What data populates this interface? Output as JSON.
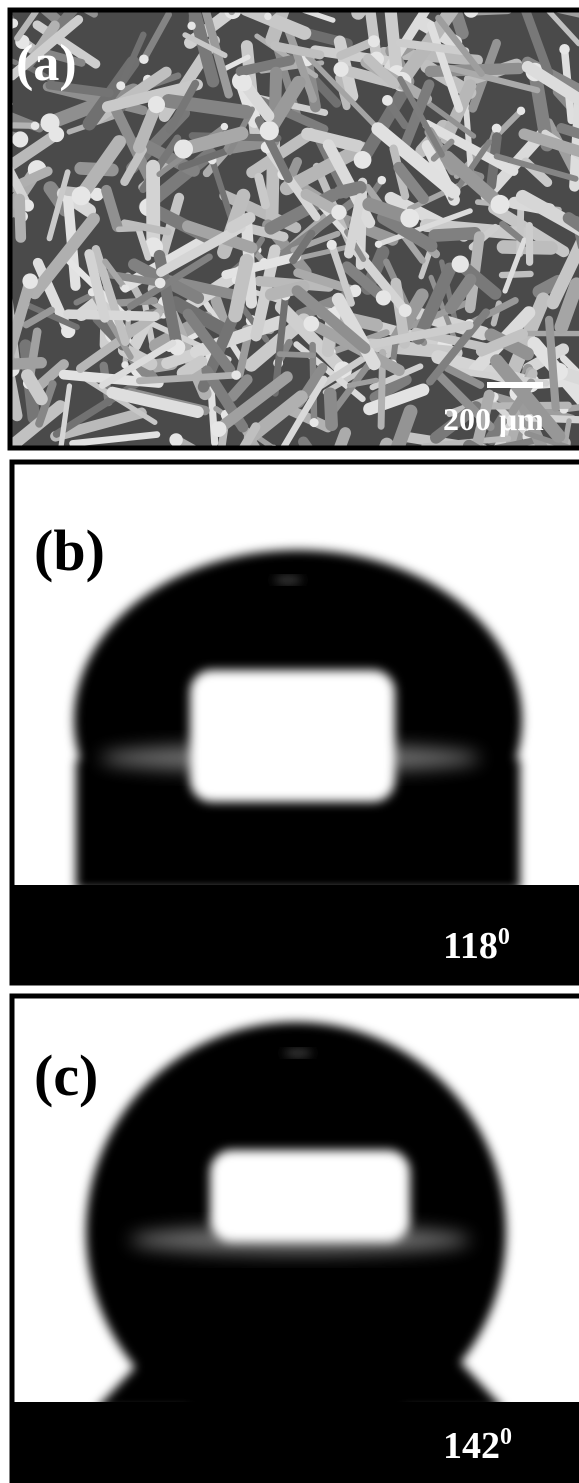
{
  "panels": [
    {
      "label": "(a)",
      "scale_bar": "200 μm"
    },
    {
      "label": "(b)",
      "angle": "118",
      "angle_unit": "0"
    },
    {
      "label": "(c)",
      "angle": "142",
      "angle_unit": "0"
    }
  ]
}
